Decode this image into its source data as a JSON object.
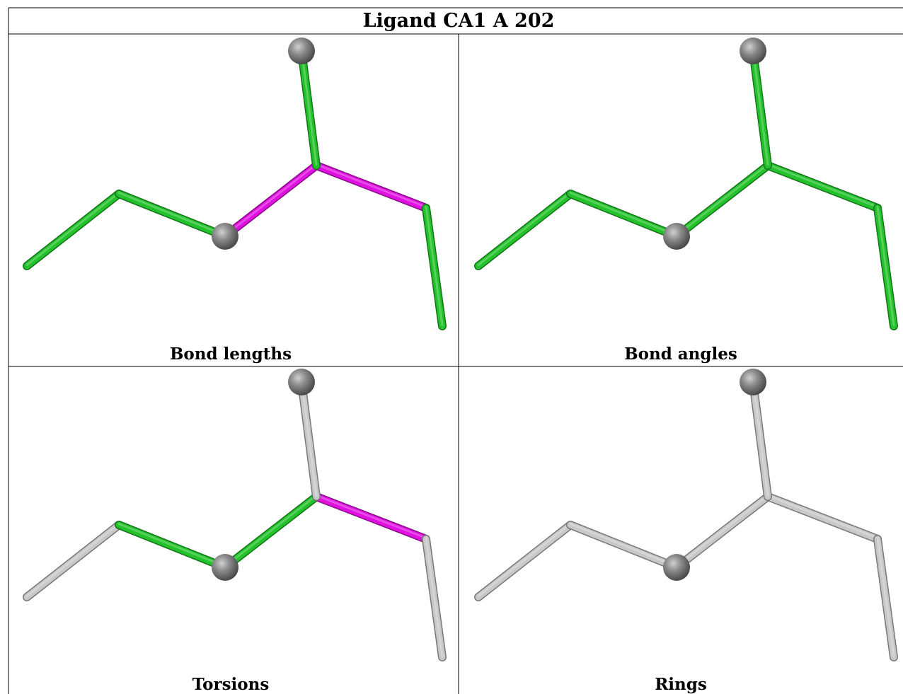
{
  "title": "Ligand CA1 A 202",
  "panels": [
    {
      "caption": "Bond lengths",
      "bond_colors": [
        "#22c22a",
        "#22c22a",
        "#e010e0",
        "#e010e0",
        "#22c22a",
        "#22c22a"
      ]
    },
    {
      "caption": "Bond angles",
      "bond_colors": [
        "#22c22a",
        "#22c22a",
        "#22c22a",
        "#22c22a",
        "#22c22a",
        "#22c22a"
      ]
    },
    {
      "caption": "Torsions",
      "bond_colors": [
        "#c8c8c8",
        "#22c22a",
        "#22c22a",
        "#e010e0",
        "#c8c8c8",
        "#c8c8c8"
      ]
    },
    {
      "caption": "Rings",
      "bond_colors": [
        "#c8c8c8",
        "#c8c8c8",
        "#c8c8c8",
        "#c8c8c8",
        "#c8c8c8",
        "#c8c8c8"
      ]
    }
  ],
  "colors": {
    "green": "#22c22a",
    "magenta": "#e010e0",
    "grey_bond": "#c8c8c8",
    "atom": "#7a7a7a",
    "border": "#000000"
  }
}
